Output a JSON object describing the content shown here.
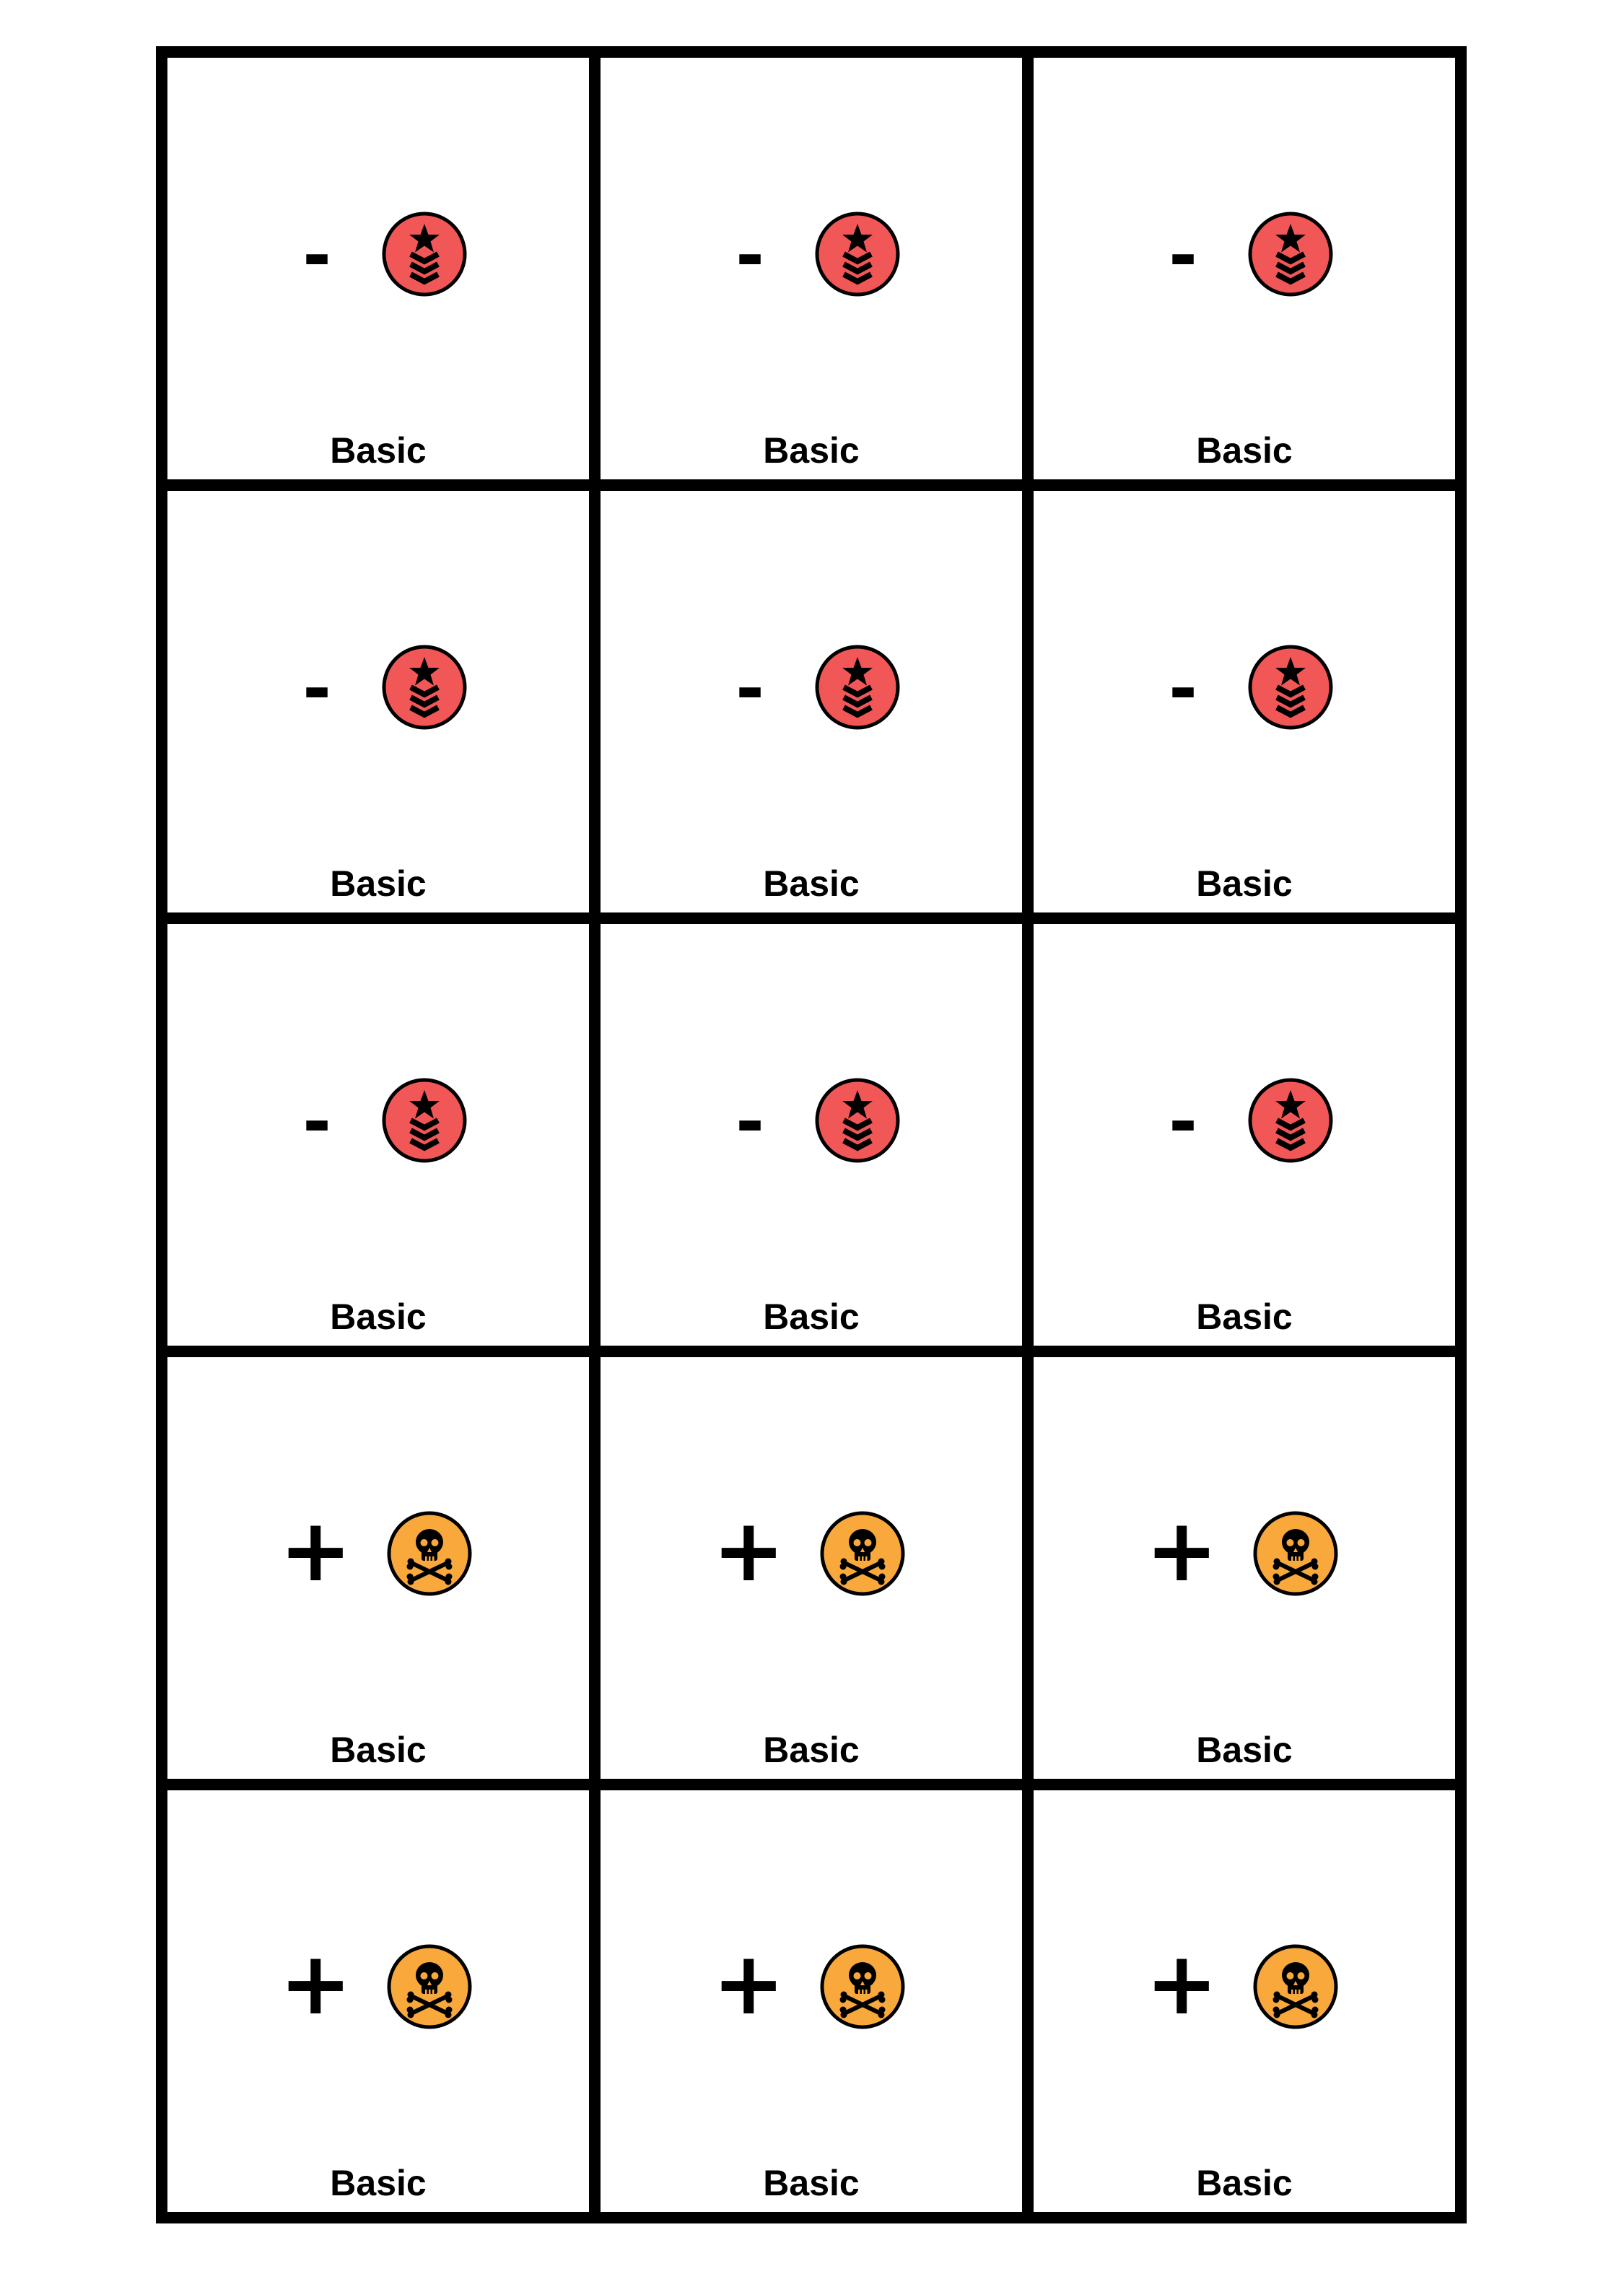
{
  "colors": {
    "rank_token": "#f25757",
    "skull_token": "#f9a83c",
    "border": "#000000"
  },
  "cards": [
    {
      "sign": "-",
      "icon": "rank-chevron-star-icon",
      "label": "Basic"
    },
    {
      "sign": "-",
      "icon": "rank-chevron-star-icon",
      "label": "Basic"
    },
    {
      "sign": "-",
      "icon": "rank-chevron-star-icon",
      "label": "Basic"
    },
    {
      "sign": "-",
      "icon": "rank-chevron-star-icon",
      "label": "Basic"
    },
    {
      "sign": "-",
      "icon": "rank-chevron-star-icon",
      "label": "Basic"
    },
    {
      "sign": "-",
      "icon": "rank-chevron-star-icon",
      "label": "Basic"
    },
    {
      "sign": "-",
      "icon": "rank-chevron-star-icon",
      "label": "Basic"
    },
    {
      "sign": "-",
      "icon": "rank-chevron-star-icon",
      "label": "Basic"
    },
    {
      "sign": "-",
      "icon": "rank-chevron-star-icon",
      "label": "Basic"
    },
    {
      "sign": "+",
      "icon": "skull-crossbones-icon",
      "label": "Basic"
    },
    {
      "sign": "+",
      "icon": "skull-crossbones-icon",
      "label": "Basic"
    },
    {
      "sign": "+",
      "icon": "skull-crossbones-icon",
      "label": "Basic"
    },
    {
      "sign": "+",
      "icon": "skull-crossbones-icon",
      "label": "Basic"
    },
    {
      "sign": "+",
      "icon": "skull-crossbones-icon",
      "label": "Basic"
    },
    {
      "sign": "+",
      "icon": "skull-crossbones-icon",
      "label": "Basic"
    }
  ]
}
